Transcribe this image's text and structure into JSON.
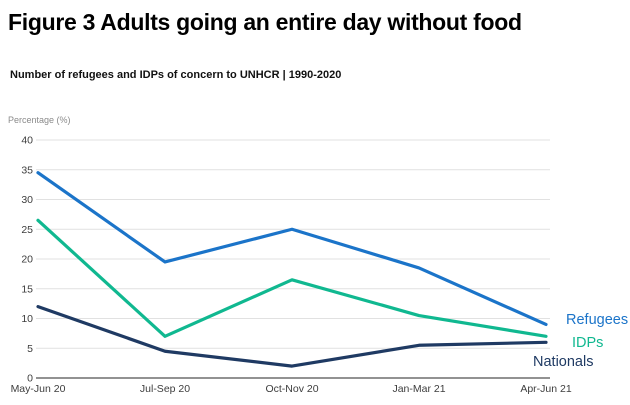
{
  "page": {
    "title": "Figure 3 Adults going an entire day without food",
    "subtitle": "Number of refugees and IDPs of concern to UNHCR | 1990-2020"
  },
  "chart_data": {
    "type": "line",
    "title": "Figure 3 Adults going an entire day without food",
    "subtitle": "Number of refugees and IDPs of concern to UNHCR | 1990-2020",
    "ylabel": "Percentage (%)",
    "xlabel": "",
    "categories": [
      "May-Jun 20",
      "Jul-Sep 20",
      "Oct-Nov 20",
      "Jan-Mar 21",
      "Apr-Jun 21"
    ],
    "y_ticks": [
      0,
      5,
      10,
      15,
      20,
      25,
      30,
      35,
      40
    ],
    "ylim": [
      0,
      40
    ],
    "grid": true,
    "legend_position": "right-end-of-lines",
    "series": [
      {
        "name": "Refugees",
        "color": "#1b74c9",
        "values": [
          34.5,
          19.5,
          25,
          18.5,
          9
        ]
      },
      {
        "name": "IDPs",
        "color": "#10b890",
        "values": [
          26.5,
          7,
          16.5,
          10.5,
          7
        ]
      },
      {
        "name": "Nationals",
        "color": "#1f3a63",
        "values": [
          12,
          4.5,
          2,
          5.5,
          6
        ]
      }
    ],
    "colors": {
      "gridline": "#e1e1e1",
      "axis_line": "#6e6e6e",
      "tick_label": "#3d3d3d"
    }
  }
}
